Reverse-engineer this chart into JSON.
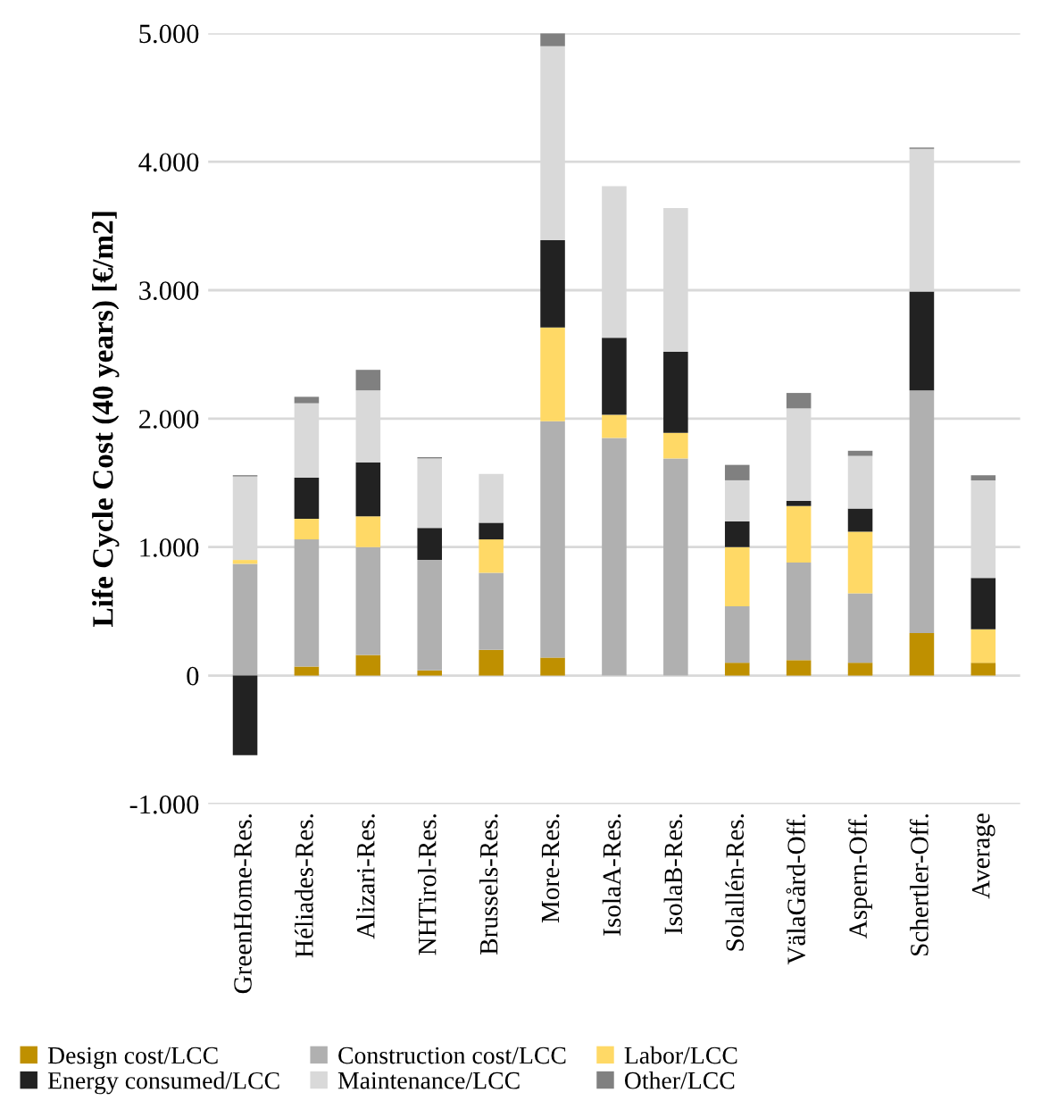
{
  "chart_data": {
    "type": "bar",
    "stacked": true,
    "ylabel": "Life Cycle Cost (40 years) [€/m2]",
    "categories": [
      "GreenHome-Res.",
      "Héliades-Res.",
      "Alizari-Res.",
      "NHTirol-Res.",
      "Brussels-Res.",
      "More-Res.",
      "IsolaA-Res.",
      "IsolaB-Res.",
      "Solallén-Res.",
      "VälaGård-Off.",
      "Aspern-Off.",
      "Schertler-Off.",
      "Average"
    ],
    "series": [
      {
        "name": "Design cost/LCC",
        "color": "#bf9000",
        "values": [
          0,
          70,
          160,
          40,
          200,
          140,
          0,
          0,
          100,
          120,
          100,
          330,
          100
        ]
      },
      {
        "name": "Construction cost/LCC",
        "color": "#b0b0b0",
        "values": [
          870,
          990,
          840,
          860,
          600,
          1840,
          1850,
          1690,
          440,
          760,
          540,
          1890,
          0
        ]
      },
      {
        "name": "Labor/LCC",
        "color": "#ffd966",
        "values": [
          30,
          160,
          240,
          0,
          260,
          730,
          180,
          200,
          460,
          440,
          480,
          0,
          260
        ]
      },
      {
        "name": "Energy consumed/LCC",
        "color": "#222222",
        "values": [
          -620,
          320,
          420,
          250,
          130,
          680,
          600,
          630,
          200,
          40,
          180,
          770,
          400
        ]
      },
      {
        "name": "Maintenance/LCC",
        "color": "#d9d9d9",
        "values": [
          650,
          580,
          560,
          540,
          380,
          1510,
          1180,
          1120,
          320,
          720,
          410,
          1110,
          760
        ]
      },
      {
        "name": "Other/LCC",
        "color": "#808080",
        "values": [
          10,
          50,
          160,
          10,
          0,
          100,
          0,
          0,
          120,
          120,
          40,
          10,
          40
        ]
      }
    ],
    "ylim": [
      -1000,
      5000
    ],
    "yticks": [
      {
        "value": -1000,
        "label": "-1.000"
      },
      0,
      {
        "value": 1000,
        "label": "1.000"
      },
      {
        "value": 2000,
        "label": "2.000"
      },
      {
        "value": 3000,
        "label": "3.000"
      },
      {
        "value": 4000,
        "label": "4.000"
      },
      {
        "value": 5000,
        "label": "5.000"
      }
    ],
    "grid": "y",
    "legend": "bottom"
  }
}
